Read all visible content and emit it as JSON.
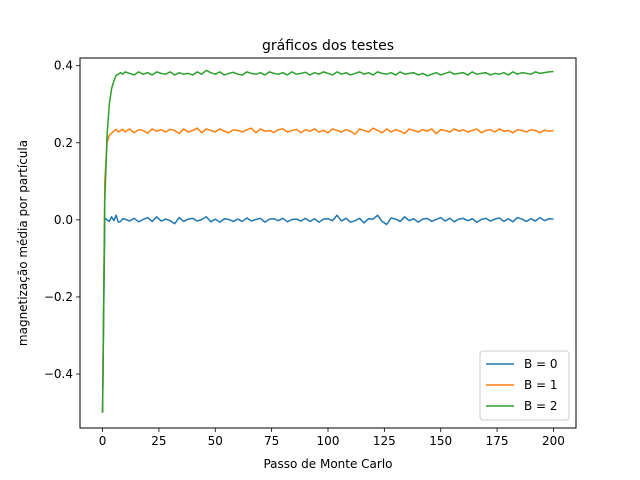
{
  "chart_data": {
    "type": "line",
    "title": "gráficos dos testes",
    "xlabel": "Passo de Monte Carlo",
    "ylabel": "magnetização média por partícula",
    "xlim": [
      -10,
      210
    ],
    "ylim": [
      -0.54,
      0.42
    ],
    "xticks": [
      0,
      25,
      50,
      75,
      100,
      125,
      150,
      175,
      200
    ],
    "yticks": [
      -0.4,
      -0.2,
      0.0,
      0.2,
      0.4
    ],
    "ytick_labels": [
      "−0.4",
      "−0.2",
      "0.0",
      "0.2",
      "0.4"
    ],
    "grid": false,
    "legend_position": "lower-right",
    "series": [
      {
        "name": "B = 0",
        "color": "#1f77b4",
        "x": [
          0,
          1,
          2,
          3,
          4,
          5,
          6,
          7,
          8,
          9,
          10,
          12,
          14,
          16,
          18,
          20,
          22,
          24,
          26,
          28,
          30,
          32,
          34,
          36,
          38,
          40,
          42,
          44,
          46,
          48,
          50,
          52,
          54,
          56,
          58,
          60,
          62,
          64,
          66,
          68,
          70,
          72,
          74,
          76,
          78,
          80,
          82,
          84,
          86,
          88,
          90,
          92,
          94,
          96,
          98,
          100,
          102,
          104,
          106,
          108,
          110,
          112,
          114,
          116,
          118,
          120,
          122,
          124,
          126,
          128,
          130,
          132,
          134,
          136,
          138,
          140,
          142,
          144,
          146,
          148,
          150,
          152,
          154,
          156,
          158,
          160,
          162,
          164,
          166,
          168,
          170,
          172,
          174,
          176,
          178,
          180,
          182,
          184,
          186,
          188,
          190,
          192,
          194,
          196,
          198,
          200
        ],
        "y": [
          -0.5,
          0.005,
          0.0,
          -0.004,
          0.008,
          -0.002,
          0.012,
          -0.006,
          -0.004,
          0.003,
          0.002,
          -0.003,
          0.004,
          -0.005,
          0.001,
          0.006,
          -0.004,
          0.008,
          -0.003,
          0.002,
          -0.002,
          -0.01,
          0.006,
          -0.004,
          0.002,
          0.004,
          -0.003,
          0.001,
          0.008,
          -0.005,
          0.002,
          -0.006,
          0.003,
          0.001,
          -0.004,
          0.002,
          -0.004,
          0.005,
          -0.003,
          0.001,
          0.004,
          -0.006,
          0.002,
          0.003,
          -0.002,
          0.004,
          -0.005,
          0.001,
          0.002,
          -0.003,
          0.004,
          -0.004,
          0.003,
          -0.006,
          0.002,
          0.003,
          -0.002,
          0.012,
          -0.003,
          0.004,
          -0.006,
          -0.002,
          0.004,
          -0.008,
          0.003,
          0.002,
          0.012,
          -0.004,
          -0.012,
          0.005,
          0.002,
          -0.004,
          0.008,
          -0.002,
          0.003,
          -0.006,
          0.002,
          0.004,
          -0.004,
          0.001,
          0.006,
          -0.003,
          0.004,
          -0.005,
          0.002,
          0.004,
          -0.002,
          0.003,
          -0.006,
          0.001,
          0.004,
          -0.003,
          0.002,
          0.005,
          -0.004,
          0.003,
          -0.005,
          0.006,
          0.002,
          -0.004,
          0.003,
          -0.003,
          0.006,
          -0.002,
          0.003,
          0.002
        ]
      },
      {
        "name": "B = 1",
        "color": "#ff7f0e",
        "x": [
          0,
          1,
          2,
          3,
          4,
          5,
          6,
          7,
          8,
          9,
          10,
          12,
          14,
          16,
          18,
          20,
          22,
          24,
          26,
          28,
          30,
          32,
          34,
          36,
          38,
          40,
          42,
          44,
          46,
          48,
          50,
          52,
          54,
          56,
          58,
          60,
          62,
          64,
          66,
          68,
          70,
          72,
          74,
          76,
          78,
          80,
          82,
          84,
          86,
          88,
          90,
          92,
          94,
          96,
          98,
          100,
          102,
          104,
          106,
          108,
          110,
          112,
          114,
          116,
          118,
          120,
          122,
          124,
          126,
          128,
          130,
          132,
          134,
          136,
          138,
          140,
          142,
          144,
          146,
          148,
          150,
          152,
          154,
          156,
          158,
          160,
          162,
          164,
          166,
          168,
          170,
          172,
          174,
          176,
          178,
          180,
          182,
          184,
          186,
          188,
          190,
          192,
          194,
          196,
          198,
          200
        ],
        "y": [
          -0.5,
          0.1,
          0.2,
          0.22,
          0.225,
          0.23,
          0.235,
          0.228,
          0.232,
          0.235,
          0.228,
          0.236,
          0.226,
          0.234,
          0.232,
          0.225,
          0.236,
          0.23,
          0.234,
          0.228,
          0.235,
          0.232,
          0.224,
          0.236,
          0.228,
          0.232,
          0.238,
          0.226,
          0.236,
          0.232,
          0.228,
          0.236,
          0.23,
          0.226,
          0.234,
          0.232,
          0.228,
          0.234,
          0.238,
          0.226,
          0.236,
          0.23,
          0.232,
          0.227,
          0.234,
          0.236,
          0.228,
          0.232,
          0.235,
          0.226,
          0.234,
          0.23,
          0.236,
          0.228,
          0.232,
          0.226,
          0.236,
          0.232,
          0.228,
          0.234,
          0.23,
          0.222,
          0.236,
          0.232,
          0.228,
          0.238,
          0.232,
          0.226,
          0.236,
          0.228,
          0.234,
          0.23,
          0.224,
          0.236,
          0.232,
          0.228,
          0.234,
          0.23,
          0.236,
          0.224,
          0.234,
          0.232,
          0.228,
          0.236,
          0.23,
          0.234,
          0.228,
          0.232,
          0.236,
          0.226,
          0.232,
          0.234,
          0.228,
          0.236,
          0.23,
          0.232,
          0.226,
          0.234,
          0.232,
          0.228,
          0.234,
          0.232,
          0.226,
          0.233,
          0.23,
          0.232
        ]
      },
      {
        "name": "B = 2",
        "color": "#2ca02c",
        "x": [
          0,
          1,
          2,
          3,
          4,
          5,
          6,
          7,
          8,
          9,
          10,
          12,
          14,
          16,
          18,
          20,
          22,
          24,
          26,
          28,
          30,
          32,
          34,
          36,
          38,
          40,
          42,
          44,
          46,
          48,
          50,
          52,
          54,
          56,
          58,
          60,
          62,
          64,
          66,
          68,
          70,
          72,
          74,
          76,
          78,
          80,
          82,
          84,
          86,
          88,
          90,
          92,
          94,
          96,
          98,
          100,
          102,
          104,
          106,
          108,
          110,
          112,
          114,
          116,
          118,
          120,
          122,
          124,
          126,
          128,
          130,
          132,
          134,
          136,
          138,
          140,
          142,
          144,
          146,
          148,
          150,
          152,
          154,
          156,
          158,
          160,
          162,
          164,
          166,
          168,
          170,
          172,
          174,
          176,
          178,
          180,
          182,
          184,
          186,
          188,
          190,
          192,
          194,
          196,
          198,
          200
        ],
        "y": [
          -0.5,
          0.05,
          0.22,
          0.3,
          0.34,
          0.36,
          0.375,
          0.378,
          0.382,
          0.378,
          0.384,
          0.38,
          0.376,
          0.384,
          0.378,
          0.382,
          0.376,
          0.384,
          0.38,
          0.378,
          0.384,
          0.376,
          0.382,
          0.378,
          0.38,
          0.376,
          0.384,
          0.378,
          0.388,
          0.382,
          0.378,
          0.384,
          0.376,
          0.38,
          0.383,
          0.378,
          0.376,
          0.384,
          0.38,
          0.378,
          0.382,
          0.376,
          0.384,
          0.38,
          0.378,
          0.382,
          0.376,
          0.384,
          0.378,
          0.38,
          0.383,
          0.376,
          0.382,
          0.378,
          0.384,
          0.38,
          0.376,
          0.384,
          0.378,
          0.382,
          0.376,
          0.38,
          0.384,
          0.378,
          0.382,
          0.376,
          0.384,
          0.38,
          0.378,
          0.382,
          0.376,
          0.384,
          0.378,
          0.38,
          0.382,
          0.376,
          0.38,
          0.374,
          0.378,
          0.382,
          0.376,
          0.38,
          0.384,
          0.378,
          0.38,
          0.382,
          0.376,
          0.384,
          0.378,
          0.38,
          0.382,
          0.376,
          0.38,
          0.378,
          0.382,
          0.376,
          0.384,
          0.378,
          0.382,
          0.38,
          0.378,
          0.384,
          0.38,
          0.382,
          0.384,
          0.385
        ]
      }
    ]
  }
}
